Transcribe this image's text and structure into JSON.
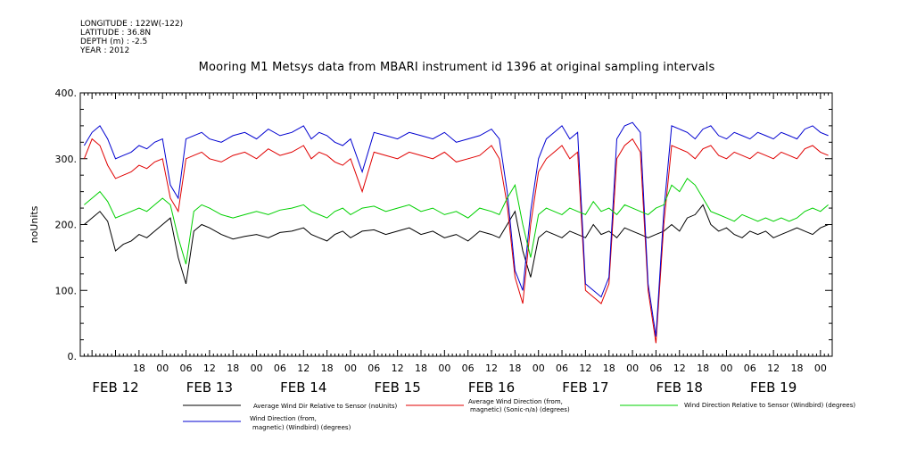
{
  "header": {
    "longitude": "LONGITUDE : 122W(-122)",
    "latitude": "LATITUDE : 36.8N",
    "depth": "DEPTH (m) : -2.5",
    "year": "YEAR : 2012"
  },
  "chart_data": {
    "type": "line",
    "title": "Mooring M1 Metsys data from MBARI instrument id 1396 at original sampling intervals",
    "ylabel": "noUnits",
    "xlabel": "",
    "ylim": [
      0,
      400
    ],
    "yticks": [
      0,
      100,
      200,
      300,
      400
    ],
    "yticklabels": [
      "0.",
      "100.",
      "200.",
      "300.",
      "400."
    ],
    "xlim": [
      -9,
      183
    ],
    "hour_ticks": [
      {
        "t": 6,
        "label": "18"
      },
      {
        "t": 12,
        "label": "00"
      },
      {
        "t": 18,
        "label": "06"
      },
      {
        "t": 24,
        "label": "12"
      },
      {
        "t": 30,
        "label": "18"
      },
      {
        "t": 36,
        "label": "00"
      },
      {
        "t": 42,
        "label": "06"
      },
      {
        "t": 48,
        "label": "12"
      },
      {
        "t": 54,
        "label": "18"
      },
      {
        "t": 60,
        "label": "00"
      },
      {
        "t": 66,
        "label": "06"
      },
      {
        "t": 72,
        "label": "12"
      },
      {
        "t": 78,
        "label": "18"
      },
      {
        "t": 84,
        "label": "00"
      },
      {
        "t": 90,
        "label": "06"
      },
      {
        "t": 96,
        "label": "12"
      },
      {
        "t": 102,
        "label": "18"
      },
      {
        "t": 108,
        "label": "00"
      },
      {
        "t": 114,
        "label": "06"
      },
      {
        "t": 120,
        "label": "12"
      },
      {
        "t": 126,
        "label": "18"
      },
      {
        "t": 132,
        "label": "00"
      },
      {
        "t": 138,
        "label": "06"
      },
      {
        "t": 144,
        "label": "12"
      },
      {
        "t": 150,
        "label": "18"
      },
      {
        "t": 156,
        "label": "00"
      },
      {
        "t": 162,
        "label": "06"
      },
      {
        "t": 168,
        "label": "12"
      },
      {
        "t": 174,
        "label": "18"
      },
      {
        "t": 180,
        "label": "00"
      }
    ],
    "day_ticks": [
      {
        "t": 0,
        "label": "FEB 12"
      },
      {
        "t": 24,
        "label": "FEB 13"
      },
      {
        "t": 48,
        "label": "FEB 14"
      },
      {
        "t": 72,
        "label": "FEB 15"
      },
      {
        "t": 96,
        "label": "FEB 16"
      },
      {
        "t": 120,
        "label": "FEB 17"
      },
      {
        "t": 144,
        "label": "FEB 18"
      },
      {
        "t": 168,
        "label": "FEB 19"
      }
    ],
    "series": [
      {
        "name": "Average Wind Dir Relative to Sensor (noUnits)",
        "color": "#000000",
        "x": [
          -8,
          -6,
          -4,
          -2,
          0,
          2,
          4,
          6,
          8,
          10,
          12,
          14,
          16,
          18,
          20,
          22,
          24,
          27,
          30,
          33,
          36,
          39,
          42,
          45,
          48,
          50,
          52,
          54,
          56,
          58,
          60,
          63,
          66,
          69,
          72,
          75,
          78,
          81,
          84,
          87,
          90,
          93,
          96,
          98,
          100,
          102,
          104,
          106,
          108,
          110,
          112,
          114,
          116,
          118,
          120,
          122,
          124,
          126,
          128,
          130,
          132,
          134,
          136,
          138,
          140,
          142,
          144,
          146,
          148,
          150,
          152,
          154,
          156,
          158,
          160,
          162,
          164,
          166,
          168,
          170,
          172,
          174,
          176,
          178,
          180,
          182
        ],
        "y": [
          200,
          210,
          220,
          205,
          160,
          170,
          175,
          185,
          180,
          190,
          200,
          210,
          150,
          110,
          190,
          200,
          195,
          185,
          178,
          182,
          185,
          180,
          188,
          190,
          195,
          185,
          180,
          175,
          185,
          190,
          180,
          190,
          192,
          185,
          190,
          195,
          185,
          190,
          180,
          185,
          175,
          190,
          185,
          180,
          200,
          220,
          160,
          120,
          180,
          190,
          185,
          180,
          190,
          185,
          180,
          200,
          185,
          190,
          180,
          195,
          190,
          185,
          180,
          185,
          190,
          200,
          190,
          210,
          215,
          230,
          200,
          190,
          195,
          185,
          180,
          190,
          185,
          190,
          180,
          185,
          190,
          195,
          190,
          185,
          195,
          200
        ]
      },
      {
        "name": "Average Wind Direction (from, magnetic) (Sonic-n/a) (degrees)",
        "color": "#e00000",
        "x": [
          -8,
          -6,
          -4,
          -2,
          0,
          2,
          4,
          6,
          8,
          10,
          12,
          14,
          16,
          18,
          20,
          22,
          24,
          27,
          30,
          33,
          36,
          39,
          42,
          45,
          48,
          50,
          52,
          54,
          56,
          58,
          60,
          63,
          66,
          69,
          72,
          75,
          78,
          81,
          84,
          87,
          90,
          93,
          96,
          98,
          100,
          102,
          104,
          106,
          108,
          110,
          112,
          114,
          116,
          118,
          120,
          122,
          124,
          126,
          128,
          130,
          132,
          134,
          136,
          138,
          140,
          142,
          144,
          146,
          148,
          150,
          152,
          154,
          156,
          158,
          160,
          162,
          164,
          166,
          168,
          170,
          172,
          174,
          176,
          178,
          180,
          182
        ],
        "y": [
          300,
          330,
          320,
          290,
          270,
          275,
          280,
          290,
          285,
          295,
          300,
          240,
          220,
          300,
          305,
          310,
          300,
          295,
          305,
          310,
          300,
          315,
          305,
          310,
          320,
          300,
          310,
          305,
          295,
          290,
          300,
          250,
          310,
          305,
          300,
          310,
          305,
          300,
          310,
          295,
          300,
          305,
          320,
          300,
          230,
          120,
          80,
          200,
          280,
          300,
          310,
          320,
          300,
          310,
          100,
          90,
          80,
          110,
          300,
          320,
          330,
          310,
          100,
          20,
          200,
          320,
          315,
          310,
          300,
          315,
          320,
          305,
          300,
          310,
          305,
          300,
          310,
          305,
          300,
          310,
          305,
          300,
          315,
          320,
          310,
          305
        ]
      },
      {
        "name": "Wind Direction (from, magnetic) (Windbird) (degrees)",
        "color": "#0000d0",
        "x": [
          -8,
          -6,
          -4,
          -2,
          0,
          2,
          4,
          6,
          8,
          10,
          12,
          14,
          16,
          18,
          20,
          22,
          24,
          27,
          30,
          33,
          36,
          39,
          42,
          45,
          48,
          50,
          52,
          54,
          56,
          58,
          60,
          63,
          66,
          69,
          72,
          75,
          78,
          81,
          84,
          87,
          90,
          93,
          96,
          98,
          100,
          102,
          104,
          106,
          108,
          110,
          112,
          114,
          116,
          118,
          120,
          122,
          124,
          126,
          128,
          130,
          132,
          134,
          136,
          138,
          140,
          142,
          144,
          146,
          148,
          150,
          152,
          154,
          156,
          158,
          160,
          162,
          164,
          166,
          168,
          170,
          172,
          174,
          176,
          178,
          180,
          182
        ],
        "y": [
          320,
          340,
          350,
          330,
          300,
          305,
          310,
          320,
          315,
          325,
          330,
          260,
          240,
          330,
          335,
          340,
          330,
          325,
          335,
          340,
          330,
          345,
          335,
          340,
          350,
          330,
          340,
          335,
          325,
          320,
          330,
          280,
          340,
          335,
          330,
          340,
          335,
          330,
          340,
          325,
          330,
          335,
          345,
          330,
          250,
          130,
          100,
          220,
          300,
          330,
          340,
          350,
          330,
          340,
          110,
          100,
          90,
          120,
          330,
          350,
          355,
          340,
          110,
          30,
          220,
          350,
          345,
          340,
          330,
          345,
          350,
          335,
          330,
          340,
          335,
          330,
          340,
          335,
          330,
          340,
          335,
          330,
          345,
          350,
          340,
          335
        ]
      },
      {
        "name": "Wind Direction Relative to Sensor (Windbird) (degrees)",
        "color": "#00d000",
        "x": [
          -8,
          -6,
          -4,
          -2,
          0,
          2,
          4,
          6,
          8,
          10,
          12,
          14,
          16,
          18,
          20,
          22,
          24,
          27,
          30,
          33,
          36,
          39,
          42,
          45,
          48,
          50,
          52,
          54,
          56,
          58,
          60,
          63,
          66,
          69,
          72,
          75,
          78,
          81,
          84,
          87,
          90,
          93,
          96,
          98,
          100,
          102,
          104,
          106,
          108,
          110,
          112,
          114,
          116,
          118,
          120,
          122,
          124,
          126,
          128,
          130,
          132,
          134,
          136,
          138,
          140,
          142,
          144,
          146,
          148,
          150,
          152,
          154,
          156,
          158,
          160,
          162,
          164,
          166,
          168,
          170,
          172,
          174,
          176,
          178,
          180,
          182
        ],
        "y": [
          230,
          240,
          250,
          235,
          210,
          215,
          220,
          225,
          220,
          230,
          240,
          230,
          180,
          140,
          220,
          230,
          225,
          215,
          210,
          215,
          220,
          215,
          222,
          225,
          230,
          220,
          215,
          210,
          220,
          225,
          215,
          225,
          228,
          220,
          225,
          230,
          220,
          225,
          215,
          220,
          210,
          225,
          220,
          215,
          240,
          260,
          200,
          150,
          215,
          225,
          220,
          215,
          225,
          220,
          215,
          235,
          220,
          225,
          215,
          230,
          225,
          220,
          215,
          225,
          230,
          260,
          250,
          270,
          260,
          240,
          220,
          215,
          210,
          205,
          215,
          210,
          205,
          210,
          205,
          210,
          205,
          210,
          220,
          225,
          220,
          230
        ]
      }
    ]
  },
  "legend": {
    "black": "Average Wind Dir Relative to Sensor (noUnits)",
    "red_line1": "Average Wind Direction (from,",
    "red_line2": "magnetic) (Sonic-n/a) (degrees)",
    "green": "Wind Direction Relative to Sensor (Windbird) (degrees)",
    "blue_line1": "Wind Direction (from,",
    "blue_line2": "magnetic) (Windbird) (degrees)"
  }
}
